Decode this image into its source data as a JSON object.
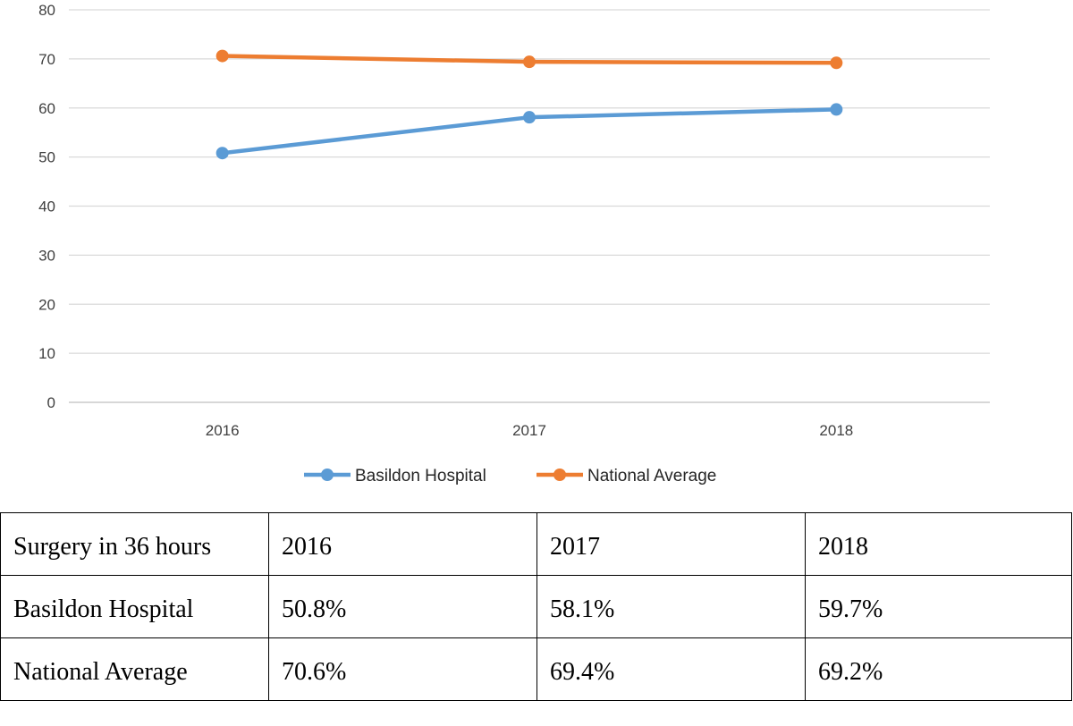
{
  "chart_data": {
    "type": "line",
    "title": "",
    "xlabel": "",
    "ylabel": "",
    "categories": [
      "2016",
      "2017",
      "2018"
    ],
    "ylim": [
      0,
      80
    ],
    "yticks": [
      0,
      10,
      20,
      30,
      40,
      50,
      60,
      70,
      80
    ],
    "grid": true,
    "legend_position": "bottom",
    "series": [
      {
        "name": "Basildon Hospital",
        "values": [
          50.8,
          58.1,
          59.7
        ],
        "color": "#5b9bd5"
      },
      {
        "name": "National Average",
        "values": [
          70.6,
          69.4,
          69.2
        ],
        "color": "#ed7d31"
      }
    ]
  },
  "table": {
    "header": [
      "Surgery in 36 hours",
      "2016",
      "2017",
      "2018"
    ],
    "rows": [
      [
        "Basildon Hospital",
        "50.8%",
        "58.1%",
        "59.7%"
      ],
      [
        "National Average",
        "70.6%",
        "69.4%",
        "69.2%"
      ]
    ]
  }
}
